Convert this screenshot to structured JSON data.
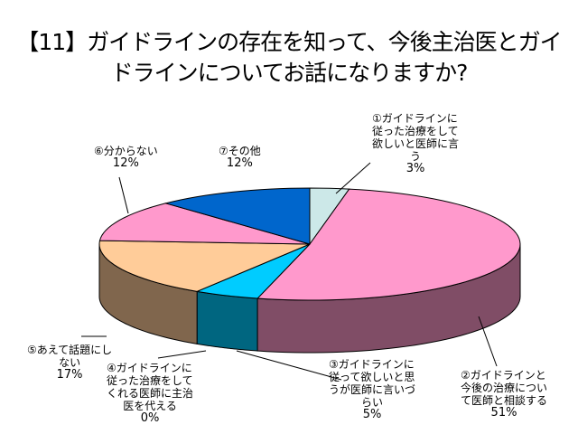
{
  "title_line1": "【11】ガイドラインの存在を知って、今後主治医とガイ",
  "title_line2": "ドラインについてお話になりますか?",
  "chart_data": {
    "type": "pie",
    "title": "【11】ガイドラインの存在を知って、今後主治医とガイドラインについてお話になりますか?",
    "style": "3d",
    "start_angle": "top",
    "direction": "clockwise",
    "slices": [
      {
        "label": [
          "①ガイドラインに",
          "従った治療をして",
          "欲しいと医師に言",
          "う"
        ],
        "percent_label": "3%",
        "value": 3,
        "color": "#cce8e8"
      },
      {
        "label": [
          "②ガイドラインと",
          "今後の治療につい",
          "て医師と相談する"
        ],
        "percent_label": "51%",
        "value": 51,
        "color": "#ff99cc"
      },
      {
        "label": [
          "③ガイドラインに",
          "従って欲しいと思",
          "うが医師に言いづ",
          "らい"
        ],
        "percent_label": "5%",
        "value": 5,
        "color": "#00ccff"
      },
      {
        "label": [
          "④ガイドラインに",
          "従った治療をして",
          "くれる医師に主治",
          "医を代える"
        ],
        "percent_label": "0%",
        "value": 0,
        "color": "#e6e6f2"
      },
      {
        "label": [
          "⑤あえて話題にし",
          "ない"
        ],
        "percent_label": "17%",
        "value": 17,
        "color": "#ffcc99"
      },
      {
        "label": [
          "⑥分からない"
        ],
        "percent_label": "12%",
        "value": 12,
        "color": "#ff99cc"
      },
      {
        "label": [
          "⑦その他"
        ],
        "percent_label": "12%",
        "value": 12,
        "color": "#0066cc"
      }
    ]
  }
}
